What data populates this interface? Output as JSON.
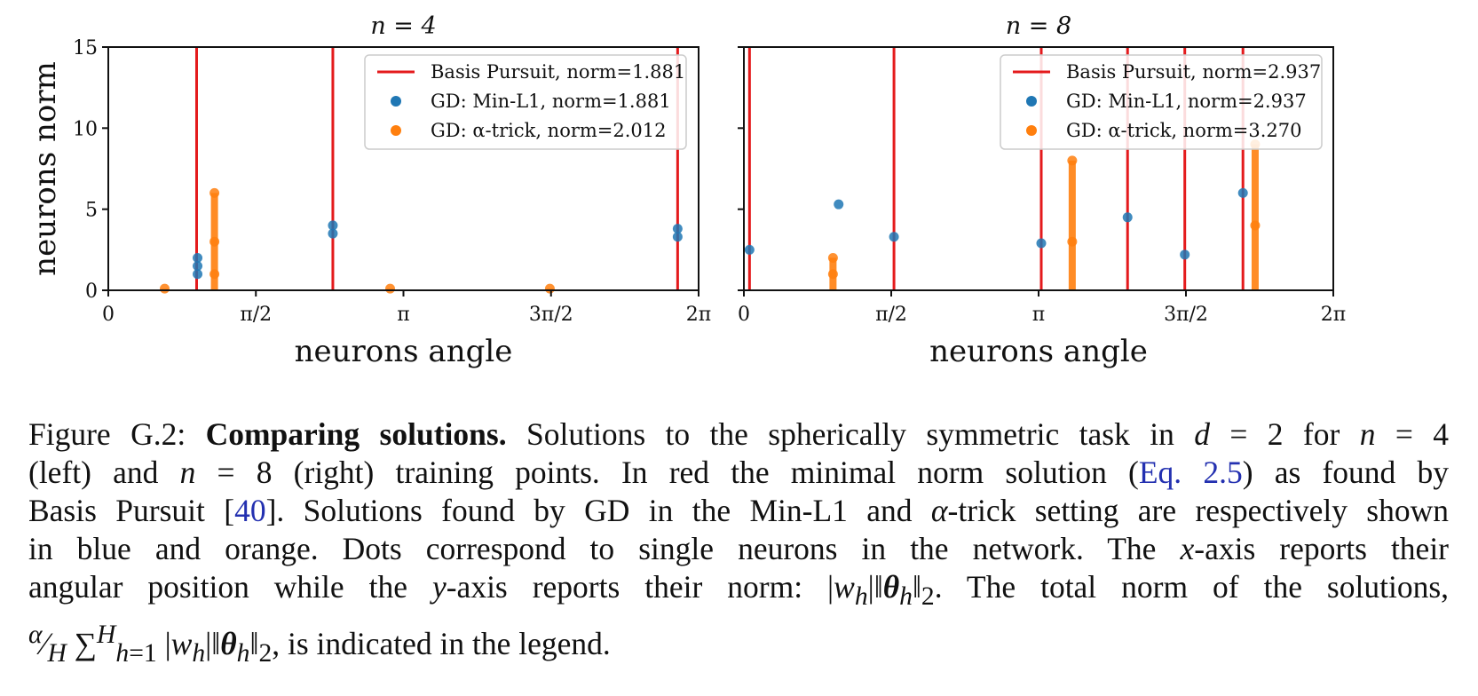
{
  "chart_data": [
    {
      "type": "scatter",
      "title": "n = 4",
      "xlabel": "neurons angle",
      "ylabel": "neurons norm",
      "xlim": [
        0,
        6.2832
      ],
      "ylim": [
        0,
        15
      ],
      "xticks": [
        0,
        1.5708,
        3.1416,
        4.7124,
        6.2832
      ],
      "xtick_labels": [
        "0",
        "π/2",
        "π",
        "3π/2",
        "2π"
      ],
      "yticks": [
        0,
        5,
        10,
        15
      ],
      "ytick_labels": [
        "0",
        "5",
        "10",
        "15"
      ],
      "legend_position": "top-right",
      "series": [
        {
          "name": "Basis Pursuit, norm=1.881",
          "kind": "vline",
          "color": "#e41a1c",
          "x": [
            0.94,
            2.39,
            6.06
          ]
        },
        {
          "name": "GD: Min-L1, norm=1.881",
          "kind": "points",
          "color": "#1f77b4",
          "points": [
            [
              0.95,
              2.0
            ],
            [
              0.95,
              1.5
            ],
            [
              0.95,
              1.0
            ],
            [
              2.39,
              4.0
            ],
            [
              2.39,
              3.5
            ],
            [
              6.06,
              3.3
            ],
            [
              6.06,
              3.8
            ]
          ]
        },
        {
          "name": "GD: α-trick, norm=2.012",
          "kind": "points",
          "color": "#ff7f0e",
          "points": [
            [
              1.13,
              6.0
            ],
            [
              1.13,
              3.0
            ],
            [
              1.13,
              1.0
            ],
            [
              0.6,
              0.1
            ],
            [
              3.0,
              0.1
            ],
            [
              4.7,
              0.1
            ]
          ]
        }
      ]
    },
    {
      "type": "scatter",
      "title": "n = 8",
      "xlabel": "neurons angle",
      "ylabel": "",
      "xlim": [
        0,
        6.2832
      ],
      "ylim": [
        0,
        15
      ],
      "xticks": [
        0,
        1.5708,
        3.1416,
        4.7124,
        6.2832
      ],
      "xtick_labels": [
        "0",
        "π/2",
        "π",
        "3π/2",
        "2π"
      ],
      "yticks": [
        0,
        5,
        10,
        15
      ],
      "legend_position": "top-right",
      "series": [
        {
          "name": "Basis Pursuit, norm=2.937",
          "kind": "vline",
          "color": "#e41a1c",
          "x": [
            0.06,
            1.6,
            3.17,
            4.09,
            4.7,
            5.32
          ]
        },
        {
          "name": "GD: Min-L1, norm=2.937",
          "kind": "points",
          "color": "#1f77b4",
          "points": [
            [
              0.06,
              2.5
            ],
            [
              1.01,
              5.3
            ],
            [
              1.6,
              3.3
            ],
            [
              3.17,
              2.9
            ],
            [
              4.09,
              4.5
            ],
            [
              4.7,
              2.2
            ],
            [
              5.32,
              6.0
            ]
          ]
        },
        {
          "name": "GD: α-trick, norm=3.270",
          "kind": "points",
          "color": "#ff7f0e",
          "points": [
            [
              0.95,
              2.0
            ],
            [
              0.95,
              1.0
            ],
            [
              3.5,
              8.0
            ],
            [
              3.5,
              3.0
            ],
            [
              5.45,
              9.0
            ],
            [
              5.45,
              4.0
            ]
          ]
        }
      ]
    }
  ],
  "caption": {
    "lines": [
      "Figure G.2: Comparing solutions. Solutions to the spherically symmetric task in d = 2 for n = 4",
      "(left) and n = 8 (right) training points. In red the minimal norm solution (Eq. 2.5) as found by",
      "Basis Pursuit [40]. Solutions found by GD in the Min-L1 and α-trick setting are respectively shown",
      "in blue and orange. Dots correspond to single neurons in the network. The x-axis reports their",
      "angular position while the y-axis reports their norm: |w_h|‖θ_h‖₂. The total norm of the solutions,",
      "α/H ∑_{h=1}^{H} |w_h|‖θ_h‖₂, is indicated in the legend."
    ]
  }
}
